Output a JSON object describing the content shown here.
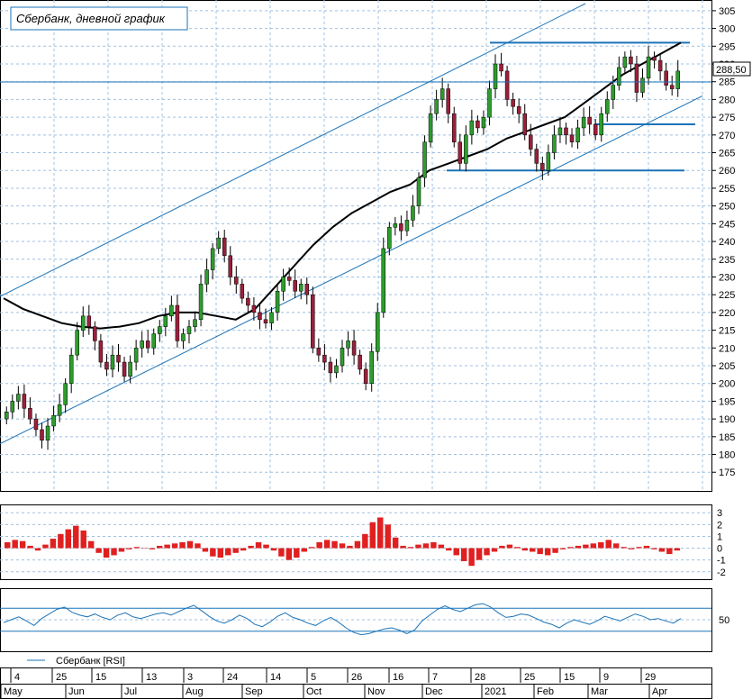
{
  "chart_data": {
    "type": "candlestick",
    "title": "Сбербанк, дневной график",
    "last_price_label": "288,50",
    "last_price": 288.5,
    "price_axis": {
      "ylim": [
        171,
        307
      ],
      "ticks": [
        175,
        180,
        185,
        190,
        195,
        200,
        205,
        210,
        215,
        220,
        225,
        230,
        235,
        240,
        245,
        250,
        255,
        260,
        265,
        270,
        275,
        280,
        285,
        290,
        295,
        300,
        305
      ]
    },
    "date_axis": {
      "day_labels": [
        "4",
        "25",
        "15",
        "13",
        "3",
        "24",
        "14",
        "5",
        "26",
        "16",
        "7",
        "28",
        "25",
        "15",
        "9",
        "29"
      ],
      "month_labels": [
        "May",
        "Jun",
        "Jul",
        "Aug",
        "Sep",
        "Oct",
        "Nov",
        "Dec",
        "2021",
        "Feb",
        "Mar",
        "Apr"
      ]
    },
    "price_closes_approx": [
      192,
      195,
      197,
      193,
      190,
      187,
      184,
      188,
      191,
      194,
      200,
      208,
      215,
      219,
      216,
      212,
      206,
      204,
      208,
      206,
      202,
      206,
      210,
      212,
      210,
      214,
      216,
      219,
      222,
      212,
      214,
      216,
      218,
      228,
      232,
      238,
      241,
      236,
      230,
      228,
      224,
      222,
      220,
      218,
      217,
      220,
      226,
      230,
      229,
      226,
      228,
      225,
      210,
      208,
      206,
      203,
      205,
      210,
      212,
      208,
      204,
      200,
      209,
      220,
      238,
      244,
      245,
      243,
      246,
      250,
      258,
      268,
      276,
      280,
      283,
      276,
      268,
      262,
      270,
      274,
      272,
      275,
      283,
      290,
      288,
      280,
      278,
      276,
      270,
      266,
      262,
      260,
      265,
      270,
      272,
      270,
      268,
      272,
      275,
      273,
      270,
      276,
      280,
      284,
      289,
      292,
      290,
      282,
      286,
      292,
      291,
      288,
      284,
      283,
      288
    ],
    "moving_average_approx": [
      224,
      221,
      219,
      217,
      216,
      215.5,
      216,
      217,
      219,
      220,
      220,
      219,
      218,
      221,
      227,
      233,
      239,
      244,
      248,
      251,
      254,
      256,
      260,
      262,
      264,
      266,
      269,
      271,
      273,
      275,
      279,
      283,
      287,
      290,
      293,
      296
    ],
    "support_resistance_levels": [
      296,
      273,
      260
    ],
    "macd": {
      "ylim": [
        -2.4,
        3.4
      ],
      "ticks": [
        3,
        2,
        1,
        0,
        -1,
        -2
      ],
      "values_approx": [
        0.5,
        0.7,
        0.6,
        0.2,
        -0.2,
        0.3,
        0.8,
        1.2,
        1.6,
        1.9,
        1.5,
        0.6,
        -0.4,
        -0.8,
        -0.6,
        -0.3,
        -0.1,
        0.1,
        0.0,
        -0.1,
        0.2,
        0.3,
        0.4,
        0.5,
        0.6,
        0.4,
        -0.3,
        -0.7,
        -0.8,
        -0.6,
        -0.4,
        -0.2,
        0.2,
        0.5,
        0.3,
        -0.2,
        -0.7,
        -1.0,
        -0.8,
        -0.3,
        0.1,
        0.5,
        0.7,
        0.6,
        0.4,
        0.2,
        0.6,
        1.2,
        2.2,
        2.6,
        2.0,
        0.9,
        0.2,
        0.1,
        0.3,
        0.4,
        0.5,
        0.3,
        -0.2,
        -0.6,
        -1.1,
        -1.5,
        -1.0,
        -0.6,
        -0.3,
        0.2,
        0.3,
        0.1,
        -0.2,
        -0.3,
        -0.5,
        -0.6,
        -0.4,
        -0.1,
        0.1,
        0.2,
        0.3,
        0.4,
        0.5,
        0.7,
        0.4,
        0.1,
        -0.1,
        0.1,
        0.2,
        -0.1,
        -0.3,
        -0.5,
        -0.2
      ]
    },
    "rsi": {
      "ylim": [
        0,
        100
      ],
      "ticks": [
        50
      ],
      "upper_level": 70,
      "lower_level": 30,
      "legend": "Сбербанк [RSI]",
      "values_approx": [
        45,
        50,
        55,
        48,
        40,
        52,
        60,
        68,
        72,
        63,
        58,
        55,
        60,
        54,
        50,
        58,
        62,
        55,
        52,
        56,
        60,
        62,
        58,
        64,
        70,
        75,
        66,
        56,
        48,
        44,
        50,
        58,
        52,
        42,
        38,
        46,
        56,
        62,
        54,
        50,
        44,
        40,
        48,
        54,
        46,
        36,
        28,
        24,
        26,
        30,
        34,
        36,
        32,
        26,
        32,
        48,
        58,
        68,
        74,
        68,
        64,
        70,
        76,
        78,
        72,
        62,
        54,
        56,
        60,
        58,
        52,
        46,
        42,
        36,
        44,
        50,
        46,
        42,
        48,
        56,
        52,
        48,
        54,
        60,
        56,
        50,
        52,
        48,
        44,
        52
      ]
    }
  }
}
